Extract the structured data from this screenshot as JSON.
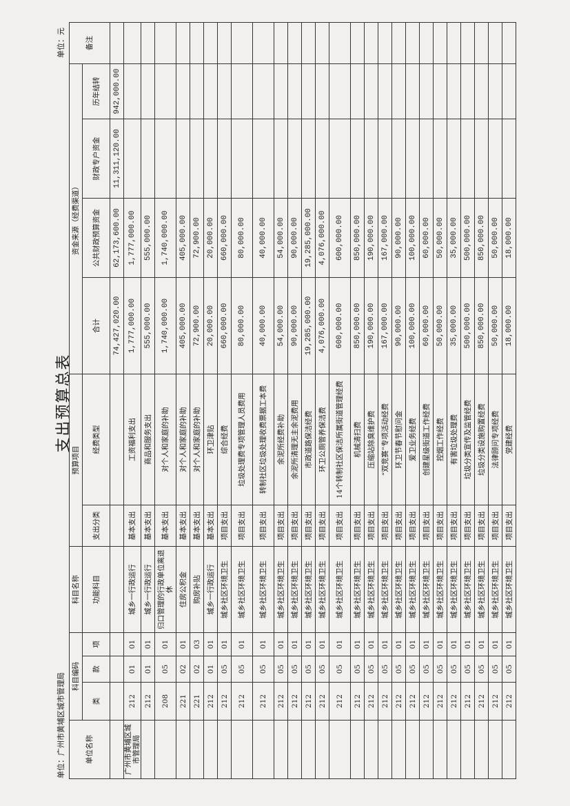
{
  "title": "支出预算总表",
  "unit_label": "单位：广州市黄埔区城市管理局",
  "currency_label": "单位：元",
  "headers": {
    "unit_name": "单位名称",
    "subject_code": "科目编码",
    "lei": "类",
    "kuan": "款",
    "xiang": "项",
    "subject_name": "科目名称",
    "function_subject": "功能科目",
    "expense_class": "支出分类",
    "budget_item": "预算项目",
    "fund_type": "经费类型",
    "total": "合计",
    "fund_source": "资金来源（经费渠道）",
    "public_budget": "公共财政预算资金",
    "special_account": "财政专户资金",
    "carryover": "历年结转",
    "remark": "备注"
  },
  "total_row": {
    "total": "74,427,020.00",
    "public_budget": "62,173,600.00",
    "special_account": "11,311,120.00",
    "carryover": "942,000.00"
  },
  "unit_name": "广州市黄埔区城市管理局",
  "rows": [
    {
      "lei": "212",
      "kuan": "01",
      "xiang": "01",
      "func": "城乡一行政运行",
      "cls": "基本支出",
      "type": "工资福利支出",
      "total": "1,777,000.00",
      "pub": "1,777,000.00"
    },
    {
      "lei": "212",
      "kuan": "01",
      "xiang": "01",
      "func": "城乡一行政运行",
      "cls": "基本支出",
      "type": "商品和服务支出",
      "total": "555,000.00",
      "pub": "555,000.00"
    },
    {
      "lei": "208",
      "kuan": "05",
      "xiang": "01",
      "func": "归口管理的行政单位离退休",
      "cls": "基本支出",
      "type": "对个人和家庭的补助",
      "total": "1,740,000.00",
      "pub": "1,740,000.00"
    },
    {
      "lei": "221",
      "kuan": "02",
      "xiang": "01",
      "func": "住房公积金",
      "cls": "基本支出",
      "type": "对个人和家庭的补助",
      "total": "405,000.00",
      "pub": "405,000.00"
    },
    {
      "lei": "221",
      "kuan": "02",
      "xiang": "03",
      "func": "购房补贴",
      "cls": "基本支出",
      "type": "对个人和家庭的补助",
      "total": "72,900.00",
      "pub": "72,900.00"
    },
    {
      "lei": "212",
      "kuan": "01",
      "xiang": "01",
      "func": "城乡一行政运行",
      "cls": "基本支出",
      "type": "环卫津贴",
      "total": "20,000.00",
      "pub": "20,000.00"
    },
    {
      "lei": "212",
      "kuan": "05",
      "xiang": "01",
      "func": "城乡社区环境卫生",
      "cls": "项目支出",
      "type": "综合经费",
      "total": "660,000.00",
      "pub": "660,000.00"
    },
    {
      "lei": "212",
      "kuan": "05",
      "xiang": "01",
      "func": "城乡社区环境卫生",
      "cls": "项目支出",
      "type": "垃圾处理费专项管理人员费用",
      "total": "80,000.00",
      "pub": "80,000.00"
    },
    {
      "lei": "212",
      "kuan": "05",
      "xiang": "01",
      "func": "城乡社区环境卫生",
      "cls": "项目支出",
      "type": "转制社区垃圾处理收费票据工本费",
      "total": "40,000.00",
      "pub": "40,000.00"
    },
    {
      "lei": "212",
      "kuan": "05",
      "xiang": "01",
      "func": "城乡社区环境卫生",
      "cls": "项目支出",
      "type": "余泥所经费补助",
      "total": "54,000.00",
      "pub": "54,000.00"
    },
    {
      "lei": "212",
      "kuan": "05",
      "xiang": "01",
      "func": "城乡社区环境卫生",
      "cls": "项目支出",
      "type": "余泥所清理无主余泥费用",
      "total": "90,000.00",
      "pub": "90,000.00"
    },
    {
      "lei": "212",
      "kuan": "05",
      "xiang": "01",
      "func": "城乡社区环境卫生",
      "cls": "项目支出",
      "type": "市政道路保洁经费",
      "total": "19,285,000.00",
      "pub": "19,285,000.00"
    },
    {
      "lei": "212",
      "kuan": "05",
      "xiang": "01",
      "func": "城乡社区环境卫生",
      "cls": "项目支出",
      "type": "环卫公厕管养保洁费",
      "total": "4,076,000.00",
      "pub": "4,076,000.00"
    },
    {
      "lei": "212",
      "kuan": "05",
      "xiang": "01",
      "func": "城乡社区环境卫生",
      "cls": "项目支出",
      "type": "14个转制社区保洁所属街道管理经费",
      "total": "600,000.00",
      "pub": "600,000.00"
    },
    {
      "lei": "212",
      "kuan": "05",
      "xiang": "01",
      "func": "城乡社区环境卫生",
      "cls": "项目支出",
      "type": "机械清扫费",
      "total": "850,000.00",
      "pub": "850,000.00"
    },
    {
      "lei": "212",
      "kuan": "05",
      "xiang": "01",
      "func": "城乡社区环境卫生",
      "cls": "项目支出",
      "type": "压缩站除臭维护费",
      "total": "190,000.00",
      "pub": "190,000.00"
    },
    {
      "lei": "212",
      "kuan": "05",
      "xiang": "01",
      "func": "城乡社区环境卫生",
      "cls": "项目支出",
      "type": "“双竞赛”专项活动经费",
      "total": "167,000.00",
      "pub": "167,000.00"
    },
    {
      "lei": "212",
      "kuan": "05",
      "xiang": "01",
      "func": "城乡社区环境卫生",
      "cls": "项目支出",
      "type": "环卫节春节慰问金",
      "total": "90,000.00",
      "pub": "90,000.00"
    },
    {
      "lei": "212",
      "kuan": "05",
      "xiang": "01",
      "func": "城乡社区环境卫生",
      "cls": "项目支出",
      "type": "爱卫业务经费",
      "total": "100,000.00",
      "pub": "100,000.00"
    },
    {
      "lei": "212",
      "kuan": "05",
      "xiang": "01",
      "func": "城乡社区环境卫生",
      "cls": "项目支出",
      "type": "创建星级街道工作经费",
      "total": "60,000.00",
      "pub": "60,000.00"
    },
    {
      "lei": "212",
      "kuan": "05",
      "xiang": "01",
      "func": "城乡社区环境卫生",
      "cls": "项目支出",
      "type": "控烟工作经费",
      "total": "50,000.00",
      "pub": "50,000.00"
    },
    {
      "lei": "212",
      "kuan": "05",
      "xiang": "01",
      "func": "城乡社区环境卫生",
      "cls": "项目支出",
      "type": "有害垃圾处理费",
      "total": "35,000.00",
      "pub": "35,000.00"
    },
    {
      "lei": "212",
      "kuan": "05",
      "xiang": "01",
      "func": "城乡社区环境卫生",
      "cls": "项目支出",
      "type": "垃圾分类宣传及监管经费",
      "total": "500,000.00",
      "pub": "500,000.00"
    },
    {
      "lei": "212",
      "kuan": "05",
      "xiang": "01",
      "func": "城乡社区环境卫生",
      "cls": "项目支出",
      "type": "垃圾分类设施购置经费",
      "total": "850,000.00",
      "pub": "850,000.00"
    },
    {
      "lei": "212",
      "kuan": "05",
      "xiang": "01",
      "func": "城乡社区环境卫生",
      "cls": "项目支出",
      "type": "法律顾问专项经费",
      "total": "50,000.00",
      "pub": "50,000.00"
    },
    {
      "lei": "212",
      "kuan": "05",
      "xiang": "01",
      "func": "城乡社区环境卫生",
      "cls": "项目支出",
      "type": "党建经费",
      "total": "18,000.00",
      "pub": "18,000.00"
    }
  ]
}
